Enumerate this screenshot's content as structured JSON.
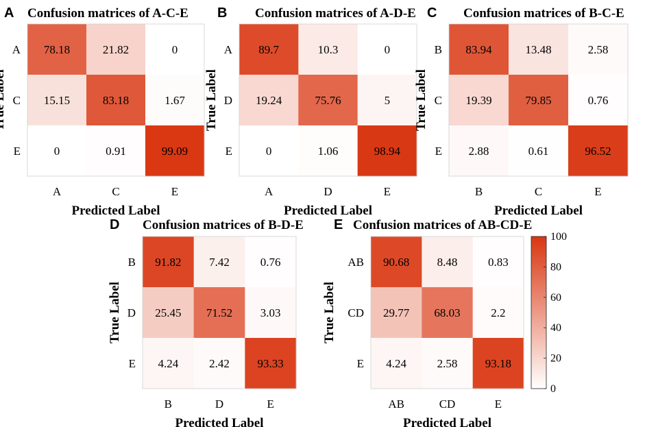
{
  "chart_data": [
    {
      "panel": "A",
      "type": "heatmap",
      "title": "Confusion matrices of A-C-E",
      "xlabel": "Predicted Label",
      "ylabel": "True Label",
      "classes": [
        "A",
        "C",
        "E"
      ],
      "values": [
        [
          78.18,
          21.82,
          0
        ],
        [
          15.15,
          83.18,
          1.67
        ],
        [
          0,
          0.91,
          99.09
        ]
      ],
      "labels": [
        [
          "78.18",
          "21.82",
          "0"
        ],
        [
          "15.15",
          "83.18",
          "1.67"
        ],
        [
          "0",
          "0.91",
          "99.09"
        ]
      ]
    },
    {
      "panel": "B",
      "type": "heatmap",
      "title": "Confusion matrices of A-D-E",
      "xlabel": "Predicted Label",
      "ylabel": "True Label",
      "classes": [
        "A",
        "D",
        "E"
      ],
      "values": [
        [
          89.7,
          10.3,
          0
        ],
        [
          19.24,
          75.76,
          5
        ],
        [
          0,
          1.06,
          98.94
        ]
      ],
      "labels": [
        [
          "89.7",
          "10.3",
          "0"
        ],
        [
          "19.24",
          "75.76",
          "5"
        ],
        [
          "0",
          "1.06",
          "98.94"
        ]
      ]
    },
    {
      "panel": "C",
      "type": "heatmap",
      "title": "Confusion matrices of B-C-E",
      "xlabel": "Predicted Label",
      "ylabel": "True Label",
      "classes": [
        "B",
        "C",
        "E"
      ],
      "values": [
        [
          83.94,
          13.48,
          2.58
        ],
        [
          19.39,
          79.85,
          0.76
        ],
        [
          2.88,
          0.61,
          96.52
        ]
      ],
      "labels": [
        [
          "83.94",
          "13.48",
          "2.58"
        ],
        [
          "19.39",
          "79.85",
          "0.76"
        ],
        [
          "2.88",
          "0.61",
          "96.52"
        ]
      ]
    },
    {
      "panel": "D",
      "type": "heatmap",
      "title": "Confusion matrices of B-D-E",
      "xlabel": "Predicted Label",
      "ylabel": "True Label",
      "classes": [
        "B",
        "D",
        "E"
      ],
      "values": [
        [
          91.82,
          7.42,
          0.76
        ],
        [
          25.45,
          71.52,
          3.03
        ],
        [
          4.24,
          2.42,
          93.33
        ]
      ],
      "labels": [
        [
          "91.82",
          "7.42",
          "0.76"
        ],
        [
          "25.45",
          "71.52",
          "3.03"
        ],
        [
          "4.24",
          "2.42",
          "93.33"
        ]
      ]
    },
    {
      "panel": "E",
      "type": "heatmap",
      "title": "Confusion matrices of AB-CD-E",
      "xlabel": "Predicted Label",
      "ylabel": "True Label",
      "classes": [
        "AB",
        "CD",
        "E"
      ],
      "values": [
        [
          90.68,
          8.48,
          0.83
        ],
        [
          29.77,
          68.03,
          2.2
        ],
        [
          4.24,
          2.58,
          93.18
        ]
      ],
      "labels": [
        [
          "90.68",
          "8.48",
          "0.83"
        ],
        [
          "29.77",
          "68.03",
          "2.2"
        ],
        [
          "4.24",
          "2.58",
          "93.18"
        ]
      ]
    }
  ],
  "colorbar": {
    "min": 0,
    "max": 100,
    "ticks": [
      0,
      20,
      40,
      60,
      80,
      100
    ],
    "tick_labels": [
      "0",
      "20",
      "40",
      "60",
      "80",
      "100"
    ]
  },
  "colors": {
    "low": "#ffffff",
    "high": "#d93611",
    "text": "#000000"
  }
}
